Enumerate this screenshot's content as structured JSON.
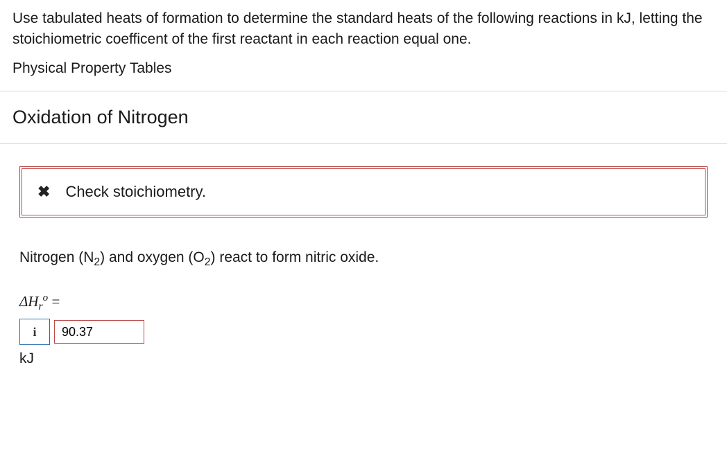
{
  "question": {
    "text": "Use tabulated heats of formation to determine the standard heats of the following reactions in kJ, letting the stoichiometric coefficent of the first reactant in each reaction equal one.",
    "tables_link": "Physical Property Tables"
  },
  "section": {
    "heading": "Oxidation of Nitrogen"
  },
  "feedback": {
    "icon_glyph": "✖",
    "message": "Check stoichiometry."
  },
  "prompt": {
    "pre": "Nitrogen (N",
    "sub1": "2",
    "mid": ") and oxygen (O",
    "sub2": "2",
    "post": ") react to form nitric oxide."
  },
  "formula": {
    "delta": "Δ",
    "H": "H",
    "sub": "r",
    "sup": "o",
    "equals": " ="
  },
  "input": {
    "info_glyph": "i",
    "value": "90.37",
    "unit": "kJ"
  },
  "colors": {
    "error_border": "#b94a4a",
    "info_border": "#2a6fb0",
    "divider": "#d9d9d9"
  }
}
